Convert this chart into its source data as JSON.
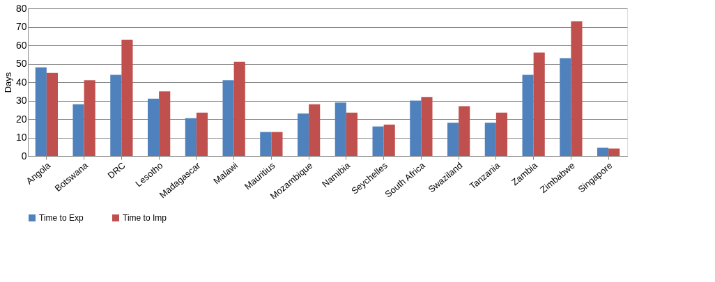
{
  "chart_data": {
    "type": "bar",
    "ylabel": "Days",
    "categories": [
      "Angola",
      "Botswana",
      "DRC",
      "Lesotho",
      "Madagascar",
      "Malawi",
      "Mauritius",
      "Mozambique",
      "Namibia",
      "Seychelles",
      "South Africa",
      "Swaziland",
      "Tanzania",
      "Zambia",
      "Zimbabwe",
      "Singapore"
    ],
    "series": [
      {
        "name": "Time to Exp",
        "color": "#4f81bd",
        "values": [
          48,
          28,
          44,
          31,
          20.5,
          41,
          13,
          23,
          29,
          16,
          30,
          18,
          18,
          44,
          53,
          4.5
        ]
      },
      {
        "name": "Time to Imp",
        "color": "#c0504d",
        "values": [
          45,
          41,
          63,
          35,
          23.5,
          51,
          13,
          28,
          23.5,
          17,
          32,
          27,
          23.5,
          56,
          73,
          4
        ]
      }
    ],
    "ylim": [
      0,
      80
    ],
    "yticks": [
      0,
      10,
      20,
      30,
      40,
      50,
      60,
      70,
      80
    ],
    "grid": "y",
    "legend": "bottom"
  }
}
